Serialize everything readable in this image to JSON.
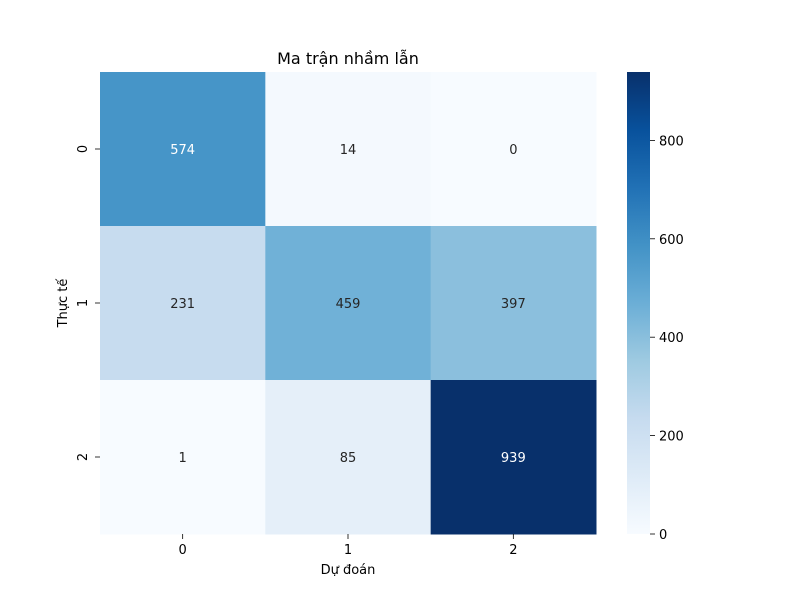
{
  "chart_data": {
    "type": "heatmap",
    "title": "Ma trận nhầm lẫn",
    "xlabel": "Dự đoán",
    "ylabel": "Thực tế",
    "x_categories": [
      "0",
      "1",
      "2"
    ],
    "y_categories": [
      "0",
      "1",
      "2"
    ],
    "values": [
      [
        574,
        14,
        0
      ],
      [
        231,
        459,
        397
      ],
      [
        1,
        85,
        939
      ]
    ],
    "colorscale": "Blues",
    "colorbar": {
      "min": 0,
      "max": 939,
      "ticks": [
        0,
        200,
        400,
        600,
        800
      ],
      "tick_labels": [
        "0",
        "200",
        "400",
        "600",
        "800"
      ]
    }
  }
}
